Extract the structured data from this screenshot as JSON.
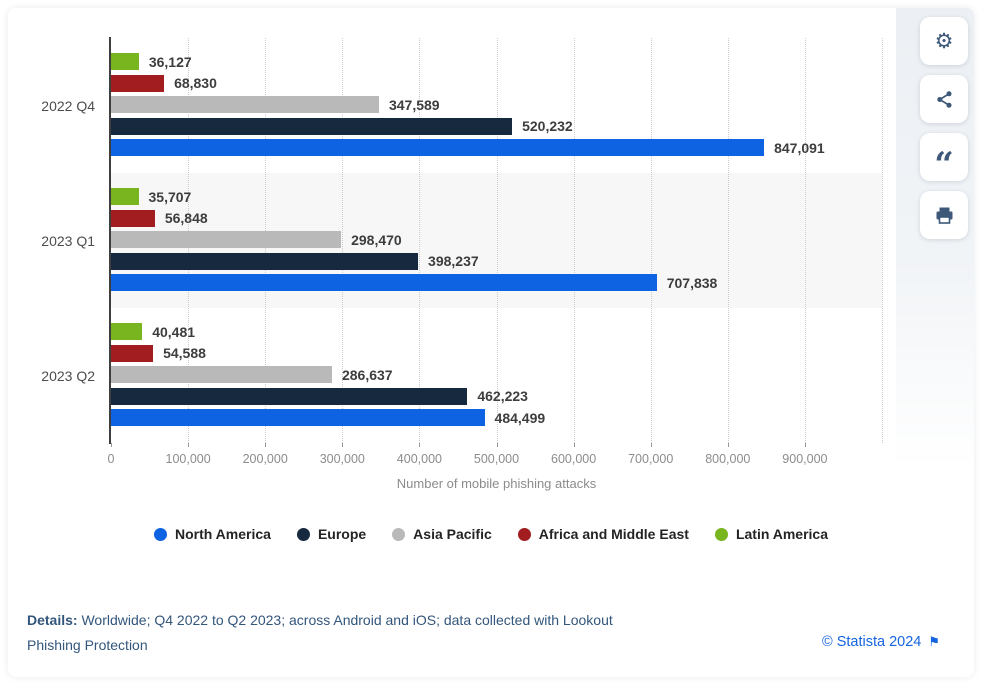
{
  "chart_data": {
    "type": "bar",
    "orientation": "horizontal",
    "title": "",
    "xlabel": "Number of mobile phishing attacks",
    "xlim": [
      0,
      1000000
    ],
    "xtick_labels": [
      "0",
      "100,000",
      "200,000",
      "300,000",
      "400,000",
      "500,000",
      "600,000",
      "700,000",
      "800,000",
      "900,000"
    ],
    "grid": "vertical-dotted",
    "legend_position": "bottom",
    "categories": [
      "2022 Q4",
      "2023 Q1",
      "2023 Q2"
    ],
    "highlighted_category": "2023 Q1",
    "bar_order_top_to_bottom": [
      "Latin America",
      "Africa and Middle East",
      "Asia Pacific",
      "Europe",
      "North America"
    ],
    "series": [
      {
        "name": "North America",
        "color": "#0d63e1",
        "values": [
          847091,
          707838,
          484499
        ],
        "value_labels": [
          "847,091",
          "707,838",
          "484,499"
        ]
      },
      {
        "name": "Europe",
        "color": "#16293f",
        "values": [
          520232,
          398237,
          462223
        ],
        "value_labels": [
          "520,232",
          "398,237",
          "462,223"
        ]
      },
      {
        "name": "Asia Pacific",
        "color": "#b9b9b9",
        "values": [
          347589,
          298470,
          286637
        ],
        "value_labels": [
          "347,589",
          "298,470",
          "286,637"
        ]
      },
      {
        "name": "Africa and Middle East",
        "color": "#a11d20",
        "values": [
          68830,
          56848,
          54588
        ],
        "value_labels": [
          "68,830",
          "56,848",
          "54,588"
        ]
      },
      {
        "name": "Latin America",
        "color": "#79b51e",
        "values": [
          36127,
          35707,
          40481
        ],
        "value_labels": [
          "36,127",
          "35,707",
          "40,481"
        ]
      }
    ]
  },
  "toolbar": {
    "buttons": [
      {
        "id": "settings",
        "icon": "gear-icon"
      },
      {
        "id": "share",
        "icon": "share-icon"
      },
      {
        "id": "cite",
        "icon": "quote-icon"
      },
      {
        "id": "print",
        "icon": "printer-icon"
      }
    ]
  },
  "footer": {
    "details_label": "Details:",
    "details_text": " Worldwide; Q4 2022 to Q2 2023; across Android and iOS; data collected with Lookout Phishing Protection",
    "copyright_text": "© Statista 2024",
    "flag_icon": "⚑"
  }
}
